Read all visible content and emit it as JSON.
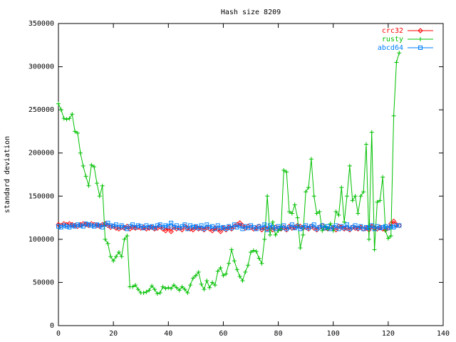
{
  "chart_data": {
    "type": "line",
    "title": "Hash size 8209",
    "y_label": "standard deviation",
    "xlim": [
      0,
      140
    ],
    "xticks": [
      0,
      20,
      40,
      60,
      80,
      100,
      120,
      140
    ],
    "ylim": [
      0,
      350000
    ],
    "yticks": [
      0,
      50000,
      100000,
      150000,
      200000,
      250000,
      300000,
      350000
    ],
    "legend_position": "top-right",
    "x": [
      0,
      1,
      2,
      3,
      4,
      5,
      6,
      7,
      8,
      9,
      10,
      11,
      12,
      13,
      14,
      15,
      16,
      17,
      18,
      19,
      20,
      21,
      22,
      23,
      24,
      25,
      26,
      27,
      28,
      29,
      30,
      31,
      32,
      33,
      34,
      35,
      36,
      37,
      38,
      39,
      40,
      41,
      42,
      43,
      44,
      45,
      46,
      47,
      48,
      49,
      50,
      51,
      52,
      53,
      54,
      55,
      56,
      57,
      58,
      59,
      60,
      61,
      62,
      63,
      64,
      65,
      66,
      67,
      68,
      69,
      70,
      71,
      72,
      73,
      74,
      75,
      76,
      77,
      78,
      79,
      80,
      81,
      82,
      83,
      84,
      85,
      86,
      87,
      88,
      89,
      90,
      91,
      92,
      93,
      94,
      95,
      96,
      97,
      98,
      99,
      100,
      101,
      102,
      103,
      104,
      105,
      106,
      107,
      108,
      109,
      110,
      111,
      112,
      113,
      114,
      115,
      116,
      117,
      118,
      119,
      120,
      121,
      122,
      123,
      124
    ],
    "series": [
      {
        "name": "crc32",
        "color": "#ff0000",
        "marker": "diamond",
        "values": [
          117000,
          116000,
          118000,
          117000,
          118000,
          117000,
          116000,
          115000,
          117000,
          118000,
          117000,
          116000,
          118000,
          117000,
          116000,
          115000,
          117000,
          118000,
          116000,
          114000,
          115000,
          113000,
          112000,
          114000,
          113000,
          115000,
          112000,
          114000,
          113000,
          114000,
          113000,
          114000,
          112000,
          113000,
          114000,
          112000,
          113000,
          115000,
          112000,
          110000,
          113000,
          109000,
          114000,
          112000,
          113000,
          111000,
          115000,
          113000,
          112000,
          111000,
          114000,
          112000,
          113000,
          111000,
          114000,
          112000,
          110000,
          113000,
          112000,
          109000,
          113000,
          111000,
          114000,
          112000,
          115000,
          117000,
          119000,
          116000,
          113000,
          115000,
          114000,
          112000,
          113000,
          115000,
          111000,
          114000,
          112000,
          113000,
          111000,
          114000,
          113000,
          112000,
          114000,
          111000,
          115000,
          113000,
          114000,
          116000,
          115000,
          113000,
          114000,
          112000,
          115000,
          113000,
          111000,
          114000,
          116000,
          113000,
          112000,
          114000,
          113000,
          111000,
          115000,
          114000,
          112000,
          113000,
          111000,
          114000,
          113000,
          112000,
          114000,
          112000,
          113000,
          111000,
          115000,
          113000,
          112000,
          114000,
          112000,
          111000,
          113000,
          118000,
          121000,
          117000,
          116000
        ]
      },
      {
        "name": "rusty",
        "color": "#00c000",
        "marker": "plus",
        "values": [
          257000,
          250000,
          240000,
          239000,
          240000,
          245000,
          225000,
          223000,
          200000,
          185000,
          173000,
          162000,
          186000,
          184000,
          165000,
          150000,
          162000,
          100000,
          95000,
          80000,
          75000,
          80000,
          85000,
          80000,
          100000,
          104000,
          45000,
          45000,
          47000,
          42000,
          38000,
          38000,
          39000,
          41000,
          46000,
          42000,
          37000,
          38000,
          45000,
          43000,
          44000,
          43000,
          47000,
          44000,
          41000,
          45000,
          42000,
          38000,
          47000,
          55000,
          58000,
          62000,
          48000,
          42000,
          52000,
          44000,
          50000,
          47000,
          63000,
          67000,
          58000,
          60000,
          72000,
          88000,
          75000,
          65000,
          57000,
          52000,
          62000,
          70000,
          85000,
          87000,
          86000,
          78000,
          72000,
          100000,
          150000,
          105000,
          120000,
          105000,
          110000,
          112000,
          180000,
          178000,
          132000,
          130000,
          140000,
          125000,
          90000,
          105000,
          155000,
          160000,
          193000,
          150000,
          130000,
          132000,
          110000,
          115000,
          112000,
          118000,
          110000,
          132000,
          128000,
          160000,
          120000,
          150000,
          185000,
          145000,
          150000,
          130000,
          150000,
          155000,
          210000,
          100000,
          224000,
          88000,
          143000,
          145000,
          172000,
          110000,
          101000,
          104000,
          243000,
          305000,
          316000
        ]
      },
      {
        "name": "abcd64",
        "color": "#0080ff",
        "marker": "square",
        "values": [
          115000,
          114000,
          116000,
          115000,
          114000,
          116000,
          115000,
          117000,
          116000,
          115000,
          118000,
          117000,
          116000,
          115000,
          117000,
          116000,
          114000,
          117000,
          119000,
          116000,
          115000,
          117000,
          114000,
          116000,
          114000,
          112000,
          115000,
          117000,
          114000,
          116000,
          115000,
          113000,
          116000,
          114000,
          115000,
          113000,
          116000,
          117000,
          114000,
          116000,
          115000,
          119000,
          114000,
          116000,
          113000,
          115000,
          117000,
          112000,
          116000,
          114000,
          115000,
          113000,
          116000,
          112000,
          117000,
          114000,
          115000,
          112000,
          116000,
          113000,
          114000,
          112000,
          115000,
          113000,
          117000,
          114000,
          116000,
          112000,
          115000,
          113000,
          116000,
          114000,
          112000,
          115000,
          113000,
          117000,
          111000,
          116000,
          114000,
          112000,
          115000,
          113000,
          116000,
          112000,
          114000,
          117000,
          113000,
          115000,
          112000,
          114000,
          116000,
          113000,
          115000,
          117000,
          112000,
          114000,
          116000,
          113000,
          115000,
          112000,
          114000,
          116000,
          112000,
          115000,
          113000,
          117000,
          112000,
          114000,
          116000,
          113000,
          115000,
          112000,
          114000,
          113000,
          116000,
          112000,
          115000,
          113000,
          114000,
          115000,
          113000,
          115000,
          114000,
          116000,
          116000
        ]
      }
    ]
  }
}
